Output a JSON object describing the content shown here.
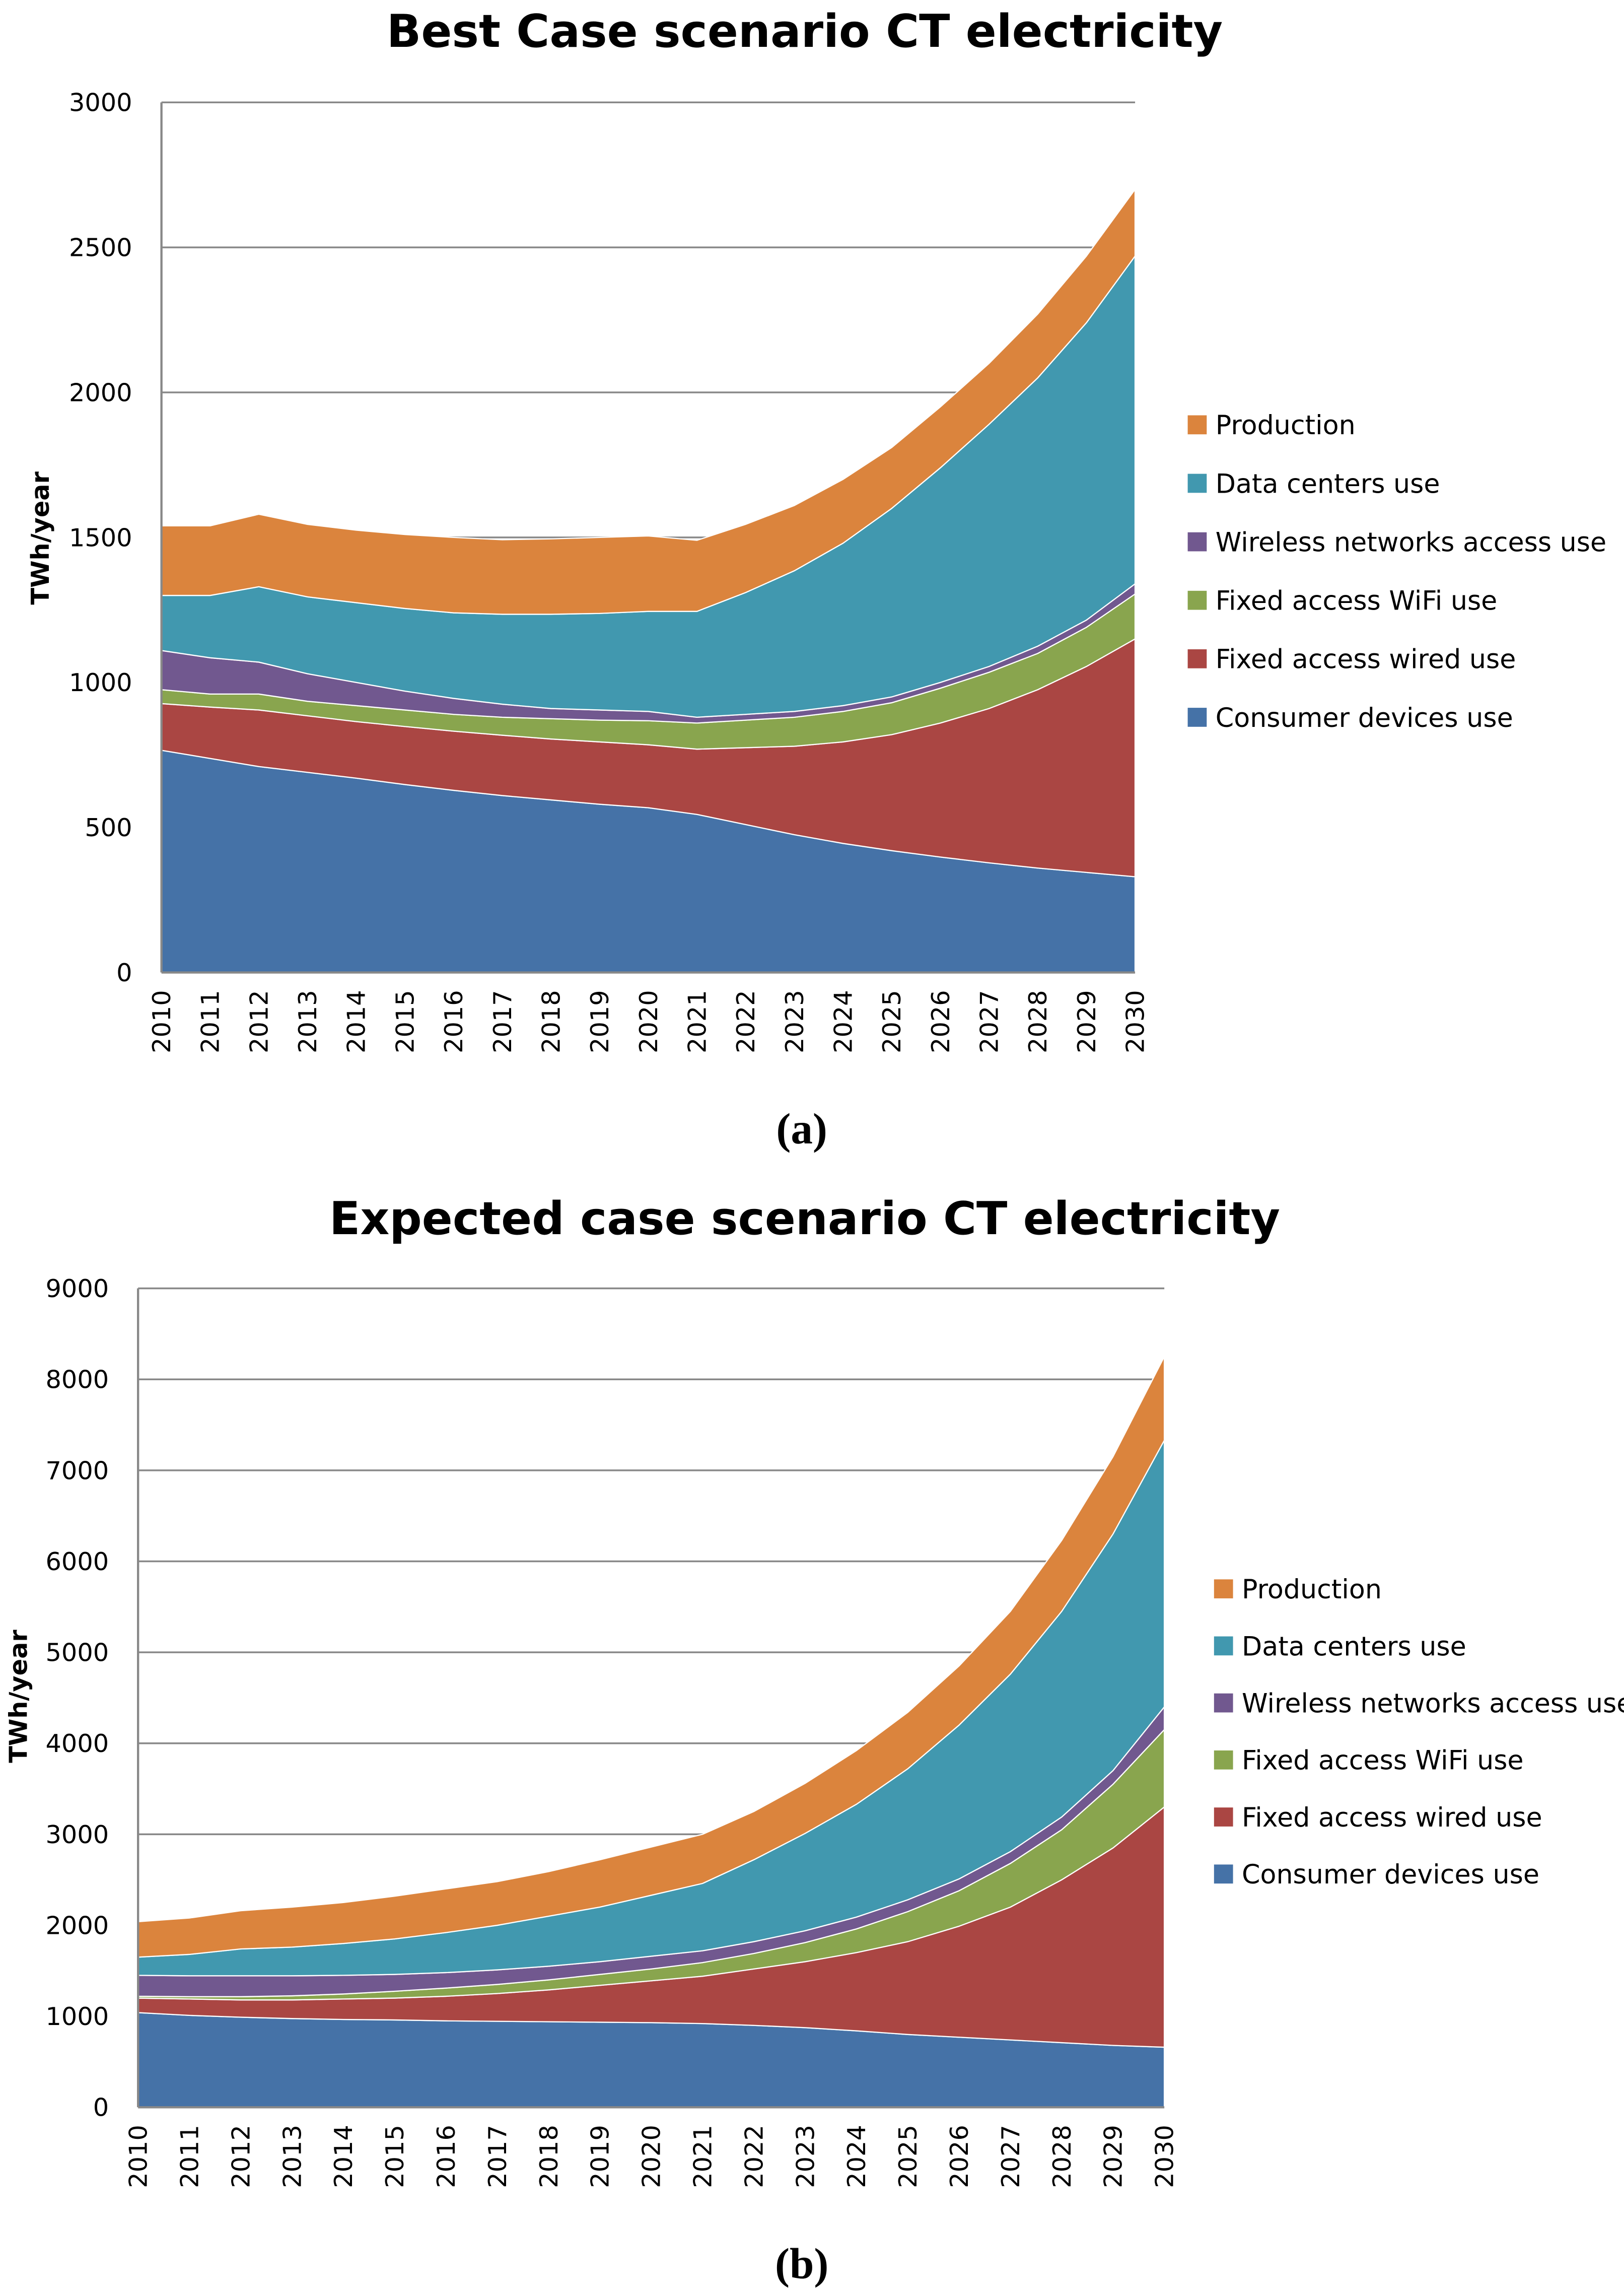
{
  "chart_data": [
    {
      "type": "area",
      "stacked": true,
      "title": "Best Case scenario CT electricity",
      "caption": "(a)",
      "ylabel": "TWh/year",
      "xlabel": "",
      "ylim": [
        0,
        3000
      ],
      "yticks": [
        0,
        500,
        1000,
        1500,
        2000,
        2500,
        3000
      ],
      "grid": true,
      "legend": "right",
      "categories": [
        "2010",
        "2011",
        "2012",
        "2013",
        "2014",
        "2015",
        "2016",
        "2017",
        "2018",
        "2019",
        "2020",
        "2021",
        "2022",
        "2023",
        "2024",
        "2025",
        "2026",
        "2027",
        "2028",
        "2029",
        "2030"
      ],
      "series": [
        {
          "name": "Consumer devices use",
          "color": "#4572A7",
          "values": [
            766,
            738,
            710,
            690,
            670,
            648,
            628,
            610,
            595,
            580,
            568,
            545,
            510,
            475,
            445,
            420,
            398,
            378,
            360,
            345,
            330
          ]
        },
        {
          "name": "Fixed access wired use",
          "color": "#AA4643",
          "values": [
            161,
            177,
            195,
            195,
            195,
            200,
            204,
            208,
            210,
            215,
            217,
            225,
            265,
            305,
            350,
            400,
            462,
            532,
            615,
            710,
            820
          ]
        },
        {
          "name": "Fixed access WiFi use",
          "color": "#89A54E",
          "values": [
            48,
            45,
            55,
            50,
            55,
            57,
            58,
            62,
            70,
            75,
            83,
            90,
            95,
            100,
            105,
            110,
            120,
            125,
            125,
            135,
            155
          ]
        },
        {
          "name": "Wireless networks access use",
          "color": "#71588F",
          "values": [
            135,
            125,
            110,
            95,
            80,
            65,
            55,
            45,
            35,
            35,
            32,
            20,
            20,
            20,
            20,
            20,
            20,
            20,
            25,
            25,
            35
          ]
        },
        {
          "name": "Data centers use",
          "color": "#4198AF",
          "values": [
            190,
            215,
            260,
            265,
            275,
            285,
            295,
            310,
            325,
            333,
            345,
            365,
            420,
            485,
            560,
            650,
            740,
            835,
            925,
            1025,
            1130
          ]
        },
        {
          "name": "Production",
          "color": "#DB843D",
          "values": [
            240,
            240,
            250,
            250,
            250,
            255,
            260,
            257,
            260,
            262,
            260,
            245,
            235,
            225,
            220,
            210,
            210,
            210,
            220,
            230,
            230
          ]
        }
      ]
    },
    {
      "type": "area",
      "stacked": true,
      "title": "Expected case scenario CT electricity",
      "caption": "(b)",
      "ylabel": "TWh/year",
      "xlabel": "",
      "ylim": [
        0,
        9000
      ],
      "yticks": [
        0,
        1000,
        2000,
        3000,
        4000,
        5000,
        6000,
        7000,
        8000,
        9000
      ],
      "grid": true,
      "legend": "right",
      "categories": [
        "2010",
        "2011",
        "2012",
        "2013",
        "2014",
        "2015",
        "2016",
        "2017",
        "2018",
        "2019",
        "2020",
        "2021",
        "2022",
        "2023",
        "2024",
        "2025",
        "2026",
        "2027",
        "2028",
        "2029",
        "2030"
      ],
      "series": [
        {
          "name": "Consumer devices use",
          "color": "#4572A7",
          "values": [
            1040,
            1010,
            990,
            975,
            965,
            960,
            950,
            945,
            940,
            935,
            930,
            920,
            900,
            875,
            840,
            800,
            770,
            740,
            710,
            680,
            660
          ]
        },
        {
          "name": "Fixed access wired use",
          "color": "#AA4643",
          "values": [
            160,
            180,
            190,
            205,
            225,
            240,
            270,
            305,
            350,
            405,
            460,
            520,
            620,
            725,
            860,
            1020,
            1220,
            1460,
            1790,
            2170,
            2640
          ]
        },
        {
          "name": "Fixed access WiFi use",
          "color": "#89A54E",
          "values": [
            20,
            25,
            35,
            45,
            55,
            75,
            90,
            100,
            110,
            120,
            130,
            150,
            170,
            210,
            260,
            330,
            390,
            480,
            550,
            700,
            850
          ]
        },
        {
          "name": "Wireless networks access use",
          "color": "#71588F",
          "values": [
            230,
            230,
            230,
            220,
            205,
            185,
            170,
            160,
            150,
            140,
            140,
            130,
            130,
            130,
            130,
            130,
            130,
            130,
            140,
            150,
            250
          ]
        },
        {
          "name": "Data centers use",
          "color": "#4198AF",
          "values": [
            200,
            235,
            295,
            315,
            350,
            390,
            440,
            490,
            550,
            600,
            670,
            740,
            900,
            1070,
            1240,
            1440,
            1690,
            1950,
            2260,
            2600,
            2930
          ]
        },
        {
          "name": "Production",
          "color": "#DB843D",
          "values": [
            390,
            400,
            420,
            440,
            450,
            470,
            480,
            480,
            490,
            520,
            530,
            540,
            530,
            550,
            590,
            620,
            650,
            690,
            780,
            850,
            920
          ]
        }
      ]
    }
  ]
}
